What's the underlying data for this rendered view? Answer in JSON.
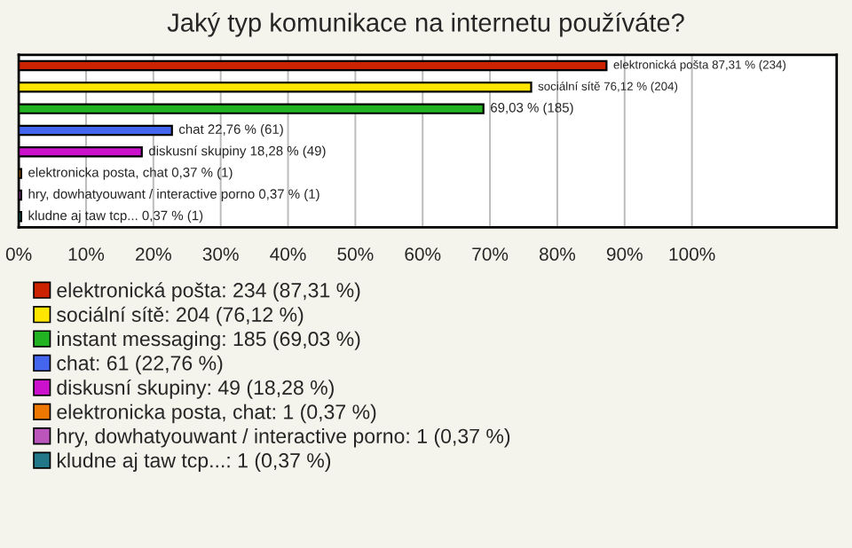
{
  "chart_data": {
    "type": "bar",
    "orientation": "horizontal",
    "title": "Jaký typ komunikace na internetu používáte?",
    "categories": [
      null,
      null,
      null,
      null,
      null,
      null,
      null,
      null
    ],
    "series": [
      {
        "name": "elektronická pošta: 234 (87,31 %)",
        "color": "#cc2200",
        "values": [
          87.31,
          null,
          null,
          null,
          null,
          null,
          null,
          null
        ],
        "value_labels": [
          "elektronická pošta 87,31 % (234)",
          null,
          null,
          null,
          null,
          null,
          null,
          null
        ]
      },
      {
        "name": "sociální sítě: 204 (76,12 %)",
        "color": "#ffe600",
        "values": [
          null,
          76.12,
          null,
          null,
          null,
          null,
          null,
          null
        ],
        "value_labels": [
          null,
          "sociální sítě 76,12 % (204)",
          null,
          null,
          null,
          null,
          null,
          null
        ]
      },
      {
        "name": "instant messaging: 185 (69,03 %)",
        "color": "#22b322",
        "values": [
          null,
          null,
          69.03,
          null,
          null,
          null,
          null,
          null
        ],
        "value_labels": [
          null,
          null,
          "69,03 % (185)",
          null,
          null,
          null,
          null,
          null
        ]
      },
      {
        "name": "chat: 61 (22,76 %)",
        "color": "#4466ee",
        "values": [
          null,
          null,
          null,
          22.76,
          null,
          null,
          null,
          null
        ],
        "value_labels": [
          null,
          null,
          null,
          "chat 22,76 % (61)",
          null,
          null,
          null,
          null
        ]
      },
      {
        "name": "diskusní skupiny: 49 (18,28 %)",
        "color": "#cc11cc",
        "values": [
          null,
          null,
          null,
          null,
          18.28,
          null,
          null,
          null
        ],
        "value_labels": [
          null,
          null,
          null,
          null,
          "diskusní skupiny 18,28 % (49)",
          null,
          null,
          null
        ]
      },
      {
        "name": "elektronicka posta, chat: 1 (0,37 %)",
        "color": "#ee7700",
        "values": [
          null,
          null,
          null,
          null,
          null,
          0.37,
          null,
          null
        ],
        "value_labels": [
          null,
          null,
          null,
          null,
          null,
          "elektronicka posta, chat 0,37 % (1)",
          null,
          null
        ]
      },
      {
        "name": "hry, dowhatyouwant / interactive porno: 1 (0,37 %)",
        "color": "#bb55bb",
        "values": [
          null,
          null,
          null,
          null,
          null,
          null,
          0.37,
          null
        ],
        "value_labels": [
          null,
          null,
          null,
          null,
          null,
          null,
          "hry, dowhatyouwant / interactive porno 0,37 % (1)",
          null
        ]
      },
      {
        "name": "kludne aj taw tcp...: 1 (0,37 %)",
        "color": "#227788",
        "values": [
          null,
          null,
          null,
          null,
          null,
          null,
          null,
          0.37
        ],
        "value_labels": [
          null,
          null,
          null,
          null,
          null,
          null,
          null,
          "kludne aj taw tcp... 0,37 % (1)"
        ]
      }
    ],
    "xlim": [
      0,
      121.5
    ],
    "xticks": [
      {
        "value": 0,
        "label": "0%"
      },
      {
        "value": 10,
        "label": "10%"
      },
      {
        "value": 20,
        "label": "20%"
      },
      {
        "value": 30,
        "label": "30%"
      },
      {
        "value": 40,
        "label": "40%"
      },
      {
        "value": 50,
        "label": "50%"
      },
      {
        "value": 60,
        "label": "60%"
      },
      {
        "value": 70,
        "label": "70%"
      },
      {
        "value": 80,
        "label": "80%"
      },
      {
        "value": 90,
        "label": "90%"
      },
      {
        "value": 100,
        "label": "100%"
      }
    ],
    "grid": "x",
    "legend": "bottom"
  }
}
